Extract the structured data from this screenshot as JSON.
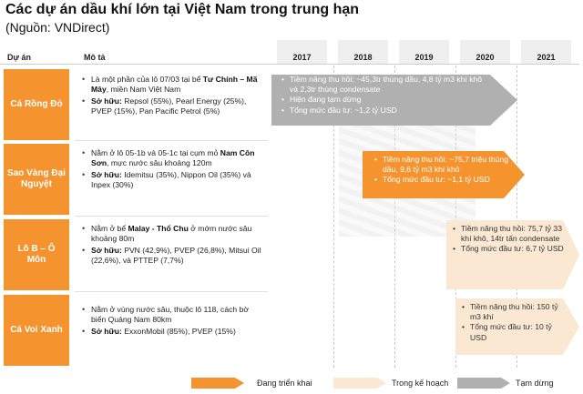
{
  "title": "Các dự án dầu khí lớn tại Việt Nam trong trung hạn",
  "subtitle": "(Nguồn: VNDirect)",
  "headers": {
    "project": "Dự án",
    "description": "Mô tả"
  },
  "years": [
    "2017",
    "2018",
    "2019",
    "2020",
    "2021"
  ],
  "colors": {
    "active": "#f5932f",
    "planned": "#fbe8d3",
    "paused": "#b0b0b0",
    "label_bg": "#f5932f"
  },
  "projects": [
    {
      "name": "Cá Rồng Đỏ",
      "desc1_a": "Là một phần của lô 07/03 tại bể ",
      "desc1_b": "Tư Chính – Mã Mây",
      "desc1_c": ", miền Nam Việt Nam",
      "owner_label": "Sở hữu:",
      "owner_text": " Repsol (55%), Pearl Energy (25%), PVEP (15%), Pan Pacific Petrol (5%)",
      "arrow_lines": [
        "Tiềm năng thu hồi: ~45,3tr thùng dầu, 4,8 tỷ m3 khí khô và 2,3tr thùng condensate",
        "Hiện đang tạm dừng",
        "Tổng mức đầu tư: ~1,2 tỷ USD"
      ]
    },
    {
      "name": "Sao Vàng Đại Nguyệt",
      "desc1_a": "Nằm ở lô 05-1b và 05-1c tại cụm mỏ ",
      "desc1_b": "Nam Côn Sơn",
      "desc1_c": ", mực nước sâu khoảng 120m",
      "owner_label": "Sở hữu:",
      "owner_text": " Idemitsu (35%), Nippon Oil (35%) và Inpex (30%)",
      "arrow_lines": [
        "Tiềm năng thu hồi: ~75,7 triệu thùng dầu, 9,6 tỷ m3 khí khô",
        "Tổng mức đầu tư: ~1,1 tỷ USD"
      ]
    },
    {
      "name": "Lô B – Ô Môn",
      "desc1_a": "Nằm ở bể ",
      "desc1_b": "Malay - Thổ Chu",
      "desc1_c": " ở mớm nước sâu khoảng 80m",
      "owner_label": "Sở hữu:",
      "owner_text": " PVN (42,9%), PVEP (26,8%), Mitsui Oil (22,6%), và PTTEP (7,7%)",
      "arrow_lines": [
        "Tiềm năng thu hồi: 75,7 tỷ 33 khí khô, 14tr tấn condensate",
        "Tổng mức đầu tư: 6,7 tỷ USD"
      ]
    },
    {
      "name": "Cá Voi Xanh",
      "desc1_a": "Nằm ở vùng nước sâu, thuộc lô 118, cách bờ biển Quảng Nam 80km",
      "desc1_b": "",
      "desc1_c": "",
      "owner_label": "Sở hữu:",
      "owner_text": " ExxonMobil (85%), PVEP (15%)",
      "arrow_lines": [
        "Tiềm năng thu hồi: 150 tỷ m3 khí",
        "Tổng mức đầu tư: 10 tỷ USD"
      ]
    }
  ],
  "legend": {
    "active": "Đang triển khai",
    "planned": "Trong kế hoạch",
    "paused": "Tạm dừng"
  }
}
